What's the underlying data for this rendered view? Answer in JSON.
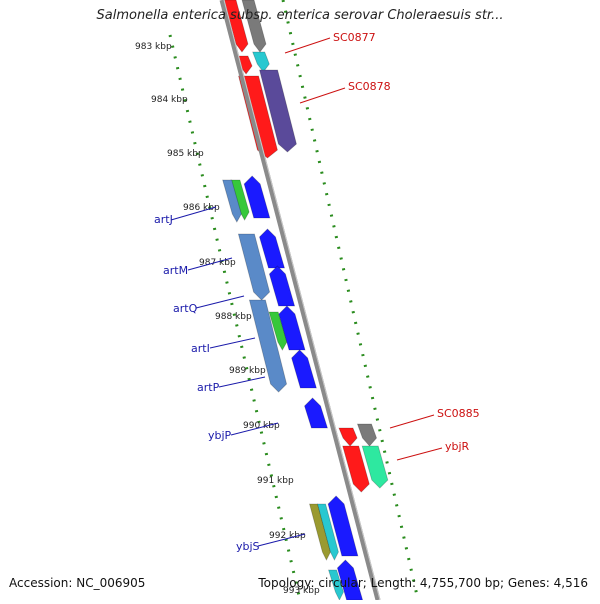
{
  "title": "Salmonella enterica subsp. enterica serovar Choleraesuis str...",
  "accession": "Accession: NC_006905",
  "topology": "Topology: circular; Length: 4,755,700 bp; Genes: 4,516",
  "colors": {
    "grid": "#2a8c1e",
    "backbone": "#8a8a8a",
    "forward_label": "#cc1111",
    "reverse_label": "#1a1aaa"
  },
  "scale_ticks": [
    "983 kbp",
    "984 kbp",
    "985 kbp",
    "986 kbp",
    "987 kbp",
    "988 kbp",
    "989 kbp",
    "990 kbp",
    "991 kbp",
    "992 kbp",
    "993 kbp"
  ],
  "forward_labels": [
    "SC0877",
    "SC0878",
    "SC0885",
    "ybjR"
  ],
  "reverse_labels": [
    "artJ",
    "artM",
    "artQ",
    "artI",
    "artP",
    "ybjP",
    "ybjS"
  ]
}
